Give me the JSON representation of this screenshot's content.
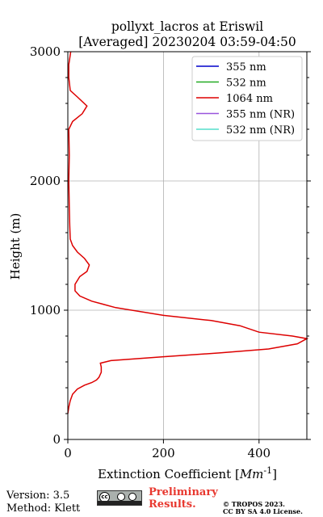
{
  "chart_data": {
    "type": "line",
    "title": "pollyxt_lacros at Eriswil",
    "subtitle": "[Averaged] 20230204 03:59-04:50",
    "xlabel": "Extinction Coefficient [Mm^-1]",
    "ylabel": "Height (m)",
    "xlim": [
      0,
      500
    ],
    "ylim": [
      0,
      3000
    ],
    "xticks": [
      "0",
      "200",
      "400"
    ],
    "yticks": [
      "0",
      "1000",
      "2000",
      "3000"
    ],
    "grid": true,
    "legend_position": "top-right",
    "series": [
      {
        "name": "355 nm",
        "color": "#0000cc",
        "points": []
      },
      {
        "name": "532 nm",
        "color": "#22aa22",
        "points": []
      },
      {
        "name": "1064 nm",
        "color": "#dd0000",
        "points": [
          [
            0,
            200
          ],
          [
            2,
            250
          ],
          [
            5,
            300
          ],
          [
            10,
            350
          ],
          [
            20,
            390
          ],
          [
            35,
            420
          ],
          [
            50,
            440
          ],
          [
            60,
            460
          ],
          [
            65,
            480
          ],
          [
            70,
            520
          ],
          [
            70,
            560
          ],
          [
            68,
            590
          ],
          [
            90,
            610
          ],
          [
            200,
            640
          ],
          [
            320,
            670
          ],
          [
            420,
            700
          ],
          [
            480,
            740
          ],
          [
            500,
            780
          ],
          [
            470,
            800
          ],
          [
            400,
            830
          ],
          [
            360,
            880
          ],
          [
            300,
            920
          ],
          [
            200,
            960
          ],
          [
            100,
            1020
          ],
          [
            50,
            1070
          ],
          [
            25,
            1110
          ],
          [
            15,
            1150
          ],
          [
            15,
            1200
          ],
          [
            25,
            1260
          ],
          [
            40,
            1300
          ],
          [
            45,
            1350
          ],
          [
            35,
            1400
          ],
          [
            20,
            1450
          ],
          [
            10,
            1500
          ],
          [
            5,
            1550
          ],
          [
            4,
            1650
          ],
          [
            3,
            1800
          ],
          [
            2,
            2000
          ],
          [
            3,
            2200
          ],
          [
            2,
            2400
          ],
          [
            10,
            2460
          ],
          [
            30,
            2520
          ],
          [
            40,
            2580
          ],
          [
            20,
            2650
          ],
          [
            5,
            2700
          ],
          [
            2,
            2800
          ],
          [
            2,
            2900
          ],
          [
            6,
            3000
          ]
        ]
      },
      {
        "name": "355 nm (NR)",
        "color": "#9955dd",
        "points": []
      },
      {
        "name": "532 nm (NR)",
        "color": "#55ddcc",
        "points": []
      }
    ]
  },
  "footer": {
    "version": "Version: 3.5",
    "method": "Method: Klett",
    "prelim_line1": "Preliminary",
    "prelim_line2": "Results.",
    "copyright_line1": "© TROPOS 2023.",
    "copyright_line2": "CC BY SA 4.0 License."
  },
  "license_badge": {
    "cc": "cc",
    "icon": "cc-by-sa-icon"
  }
}
